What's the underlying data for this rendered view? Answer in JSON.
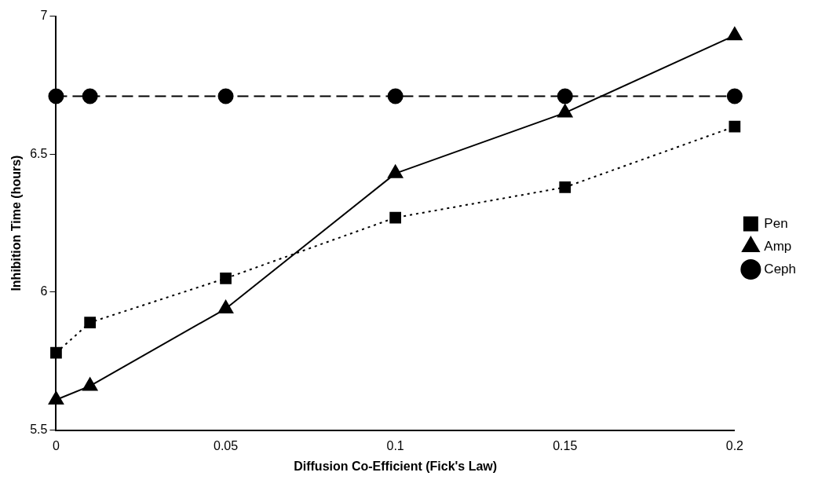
{
  "chart_data": {
    "type": "line",
    "xlabel": "Diffusion Co-Efficient (Fick's Law)",
    "ylabel": "Inhibition Time (hours)",
    "xlim": [
      0,
      0.2
    ],
    "xticks": [
      0,
      0.05,
      0.1,
      0.15,
      0.2
    ],
    "ylim": [
      5.5,
      7
    ],
    "yticks": [
      5.5,
      6,
      6.5,
      7
    ],
    "grid": false,
    "legend": "right",
    "series": [
      {
        "name": "Pen",
        "color": "#000000",
        "marker": "square",
        "line_style": "dotted",
        "x": [
          0,
          0.01,
          0.05,
          0.1,
          0.15,
          0.2
        ],
        "values": [
          5.78,
          5.89,
          6.05,
          6.27,
          6.38,
          6.6
        ]
      },
      {
        "name": "Amp",
        "color": "#000000",
        "marker": "triangle",
        "line_style": "solid",
        "x": [
          0,
          0.01,
          0.05,
          0.1,
          0.15,
          0.2
        ],
        "values": [
          5.61,
          5.66,
          5.94,
          6.43,
          6.65,
          6.93
        ]
      },
      {
        "name": "Ceph",
        "color": "#000000",
        "marker": "circle",
        "line_style": "dashed",
        "x": [
          0,
          0.01,
          0.05,
          0.1,
          0.15,
          0.2
        ],
        "values": [
          6.71,
          6.71,
          6.71,
          6.71,
          6.71,
          6.71
        ]
      }
    ]
  }
}
